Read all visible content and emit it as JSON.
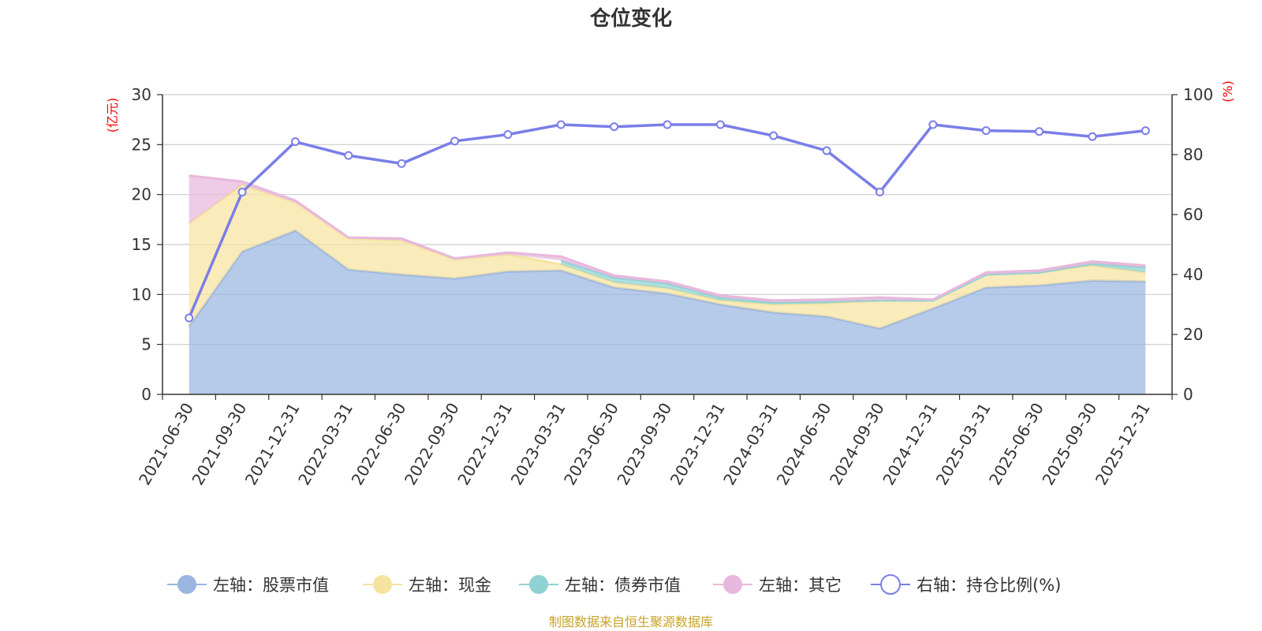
{
  "chart_data": {
    "type": "area",
    "title": "仓位变化",
    "left_axis": {
      "unit": "(亿元)",
      "ylim": [
        0,
        30
      ],
      "ticks": [
        0,
        5,
        10,
        15,
        20,
        25,
        30
      ]
    },
    "right_axis": {
      "unit": "(%)",
      "ylim": [
        0,
        100
      ],
      "ticks": [
        0,
        20,
        40,
        60,
        80,
        100
      ]
    },
    "categories": [
      "2021-06-30",
      "2021-09-30",
      "2021-12-31",
      "2022-03-31",
      "2022-06-30",
      "2022-09-30",
      "2022-12-31",
      "2023-03-31",
      "2023-06-30",
      "2023-09-30",
      "2023-12-31",
      "2024-03-31",
      "2024-06-30",
      "2024-09-30",
      "2024-12-31",
      "2025-03-31",
      "2025-06-30",
      "2025-09-30",
      "2025-12-31"
    ],
    "series": [
      {
        "name": "左轴：股票市值",
        "axis": "left",
        "stack": true,
        "color": "#9ab5e0",
        "values": [
          6.8,
          14.3,
          16.4,
          12.5,
          12.0,
          11.6,
          12.3,
          12.4,
          10.7,
          10.1,
          9.0,
          8.2,
          7.8,
          6.6,
          8.6,
          10.7,
          10.9,
          11.4,
          11.3
        ]
      },
      {
        "name": "左轴：现金",
        "axis": "left",
        "stack": true,
        "color": "#f7e3a0",
        "values": [
          10.3,
          6.7,
          2.8,
          3.1,
          3.4,
          1.9,
          1.7,
          0.6,
          0.5,
          0.5,
          0.4,
          0.8,
          1.3,
          2.8,
          0.8,
          1.3,
          1.3,
          1.5,
          0.9
        ]
      },
      {
        "name": "左轴：债券市值",
        "axis": "left",
        "stack": true,
        "color": "#8fd2d4",
        "values": [
          0,
          0,
          0,
          0,
          0,
          0,
          0,
          0.4,
          0.5,
          0.5,
          0.3,
          0.2,
          0.2,
          0,
          0,
          0,
          0,
          0.2,
          0.5
        ]
      },
      {
        "name": "左轴：其它",
        "axis": "left",
        "stack": true,
        "color": "#e8b8dc",
        "values": [
          4.8,
          0.3,
          0.2,
          0.1,
          0.2,
          0.1,
          0.2,
          0.4,
          0.2,
          0.2,
          0.2,
          0.2,
          0.2,
          0.3,
          0.1,
          0.2,
          0.2,
          0.2,
          0.2
        ]
      },
      {
        "name": "右轴：持仓比例(%)",
        "axis": "right",
        "type": "line",
        "color": "#7a7ee8",
        "values": [
          25.5,
          67.5,
          84.3,
          79.7,
          77.0,
          84.5,
          86.7,
          90.0,
          89.3,
          90.0,
          90.0,
          86.3,
          81.3,
          67.5,
          90.0,
          88.0,
          87.7,
          86.0,
          88.0
        ]
      }
    ],
    "legend_position": "bottom",
    "source": "制图数据来自恒生聚源数据库"
  }
}
